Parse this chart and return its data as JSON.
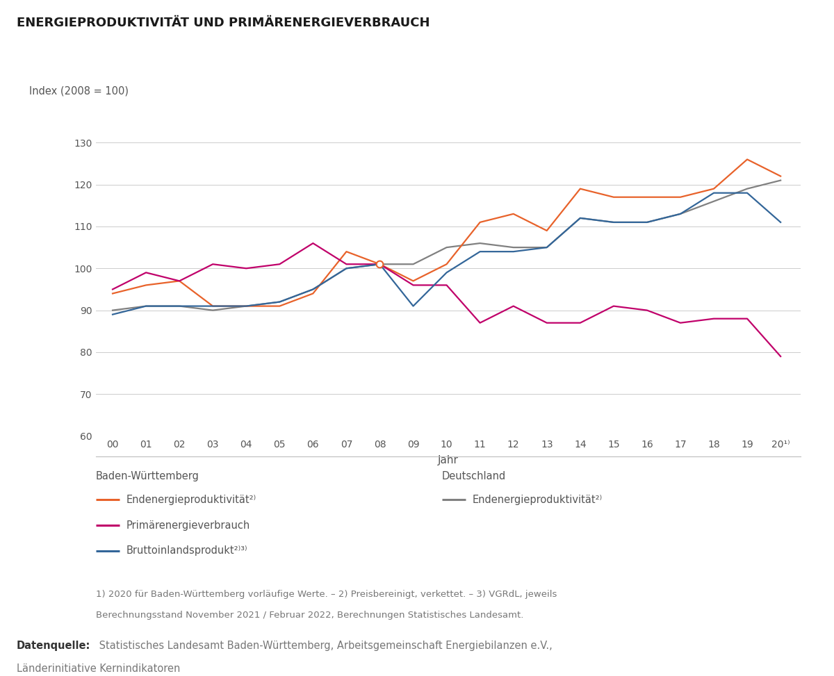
{
  "title": "ENERGIEPRODUKTIVITÄT UND PRI MÄRENERGIEVERBRAUCH",
  "title_actual": "ENERGIEPRODUKTIVITÄT UND PRIMÄRENERGIEVERBRAUCH",
  "ylabel": "Index (2008 = 100)",
  "xlabel": "Jahr",
  "years": [
    2000,
    2001,
    2002,
    2003,
    2004,
    2005,
    2006,
    2007,
    2008,
    2009,
    2010,
    2011,
    2012,
    2013,
    2014,
    2015,
    2016,
    2017,
    2018,
    2019,
    2020
  ],
  "year_labels": [
    "00",
    "01",
    "02",
    "03",
    "04",
    "05",
    "06",
    "07",
    "08",
    "09",
    "10",
    "11",
    "12",
    "13",
    "14",
    "15",
    "16",
    "17",
    "18",
    "19",
    "20¹⧞"
  ],
  "bw_endenergie": [
    94,
    96,
    97,
    91,
    91,
    91,
    94,
    104,
    101,
    97,
    101,
    111,
    113,
    109,
    119,
    117,
    117,
    117,
    119,
    126,
    122
  ],
  "de_endenergie": [
    90,
    91,
    91,
    90,
    91,
    92,
    95,
    100,
    101,
    101,
    105,
    106,
    105,
    105,
    112,
    111,
    111,
    113,
    116,
    119,
    121
  ],
  "bw_primaer": [
    95,
    99,
    97,
    101,
    100,
    101,
    106,
    101,
    101,
    96,
    96,
    87,
    91,
    87,
    87,
    91,
    90,
    87,
    88,
    88,
    79
  ],
  "bw_bip": [
    89,
    91,
    91,
    91,
    91,
    92,
    95,
    100,
    101,
    91,
    99,
    104,
    104,
    105,
    112,
    111,
    111,
    113,
    118,
    118,
    111
  ],
  "colors": {
    "bw_endenergie": "#E8622A",
    "de_endenergie": "#808080",
    "bw_primaer": "#C0006A",
    "bw_bip": "#336699"
  },
  "ylim": [
    60,
    135
  ],
  "yticks": [
    60,
    70,
    80,
    90,
    100,
    110,
    120,
    130
  ],
  "note1": "1) 2020 für Baden-Württemberg vorläufige Werte. – 2) Preisbereinigt, verkettet. – 3) VGRdL, jeweils",
  "note2": "Berechnungsstand November 2021 / Februar 2022, Berechnungen Statistisches Landesamt.",
  "source_bold": "Datenquelle:",
  "source_text": " Statistisches Landesamt Baden-Württemberg, Arbeitsgemeinschaft Energiebilanzen e.V.,",
  "source_text2": "Länderinitiative Kernindikatoren",
  "legend_bw_label": "Baden-Württemberg",
  "legend_de_label": "Deutschland",
  "legend_entries_bw": [
    [
      "Endenergieproduktivität²⁾",
      "#E8622A"
    ],
    [
      "Primärenergieverbrauch",
      "#C0006A"
    ],
    [
      "Bruttoinlandsprodukt²⁾³⁾",
      "#336699"
    ]
  ],
  "legend_entries_de": [
    [
      "Endenergieproduktivität²⁾",
      "#808080"
    ]
  ]
}
